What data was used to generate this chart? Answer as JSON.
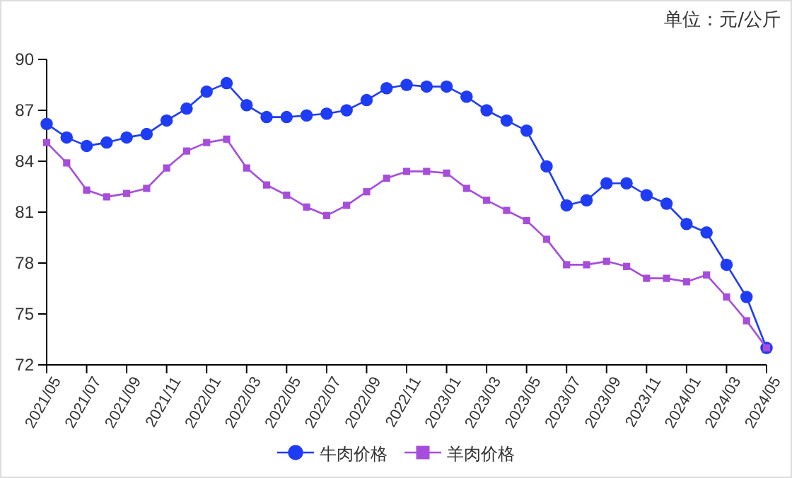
{
  "chart_data": {
    "type": "line",
    "annotations": [
      "单位：元/公斤"
    ],
    "categories": [
      "2021/05",
      null,
      "2021/07",
      null,
      "2021/09",
      null,
      "2021/11",
      null,
      "2022/01",
      null,
      "2022/03",
      null,
      "2022/05",
      null,
      "2022/07",
      null,
      "2022/09",
      null,
      "2022/11",
      null,
      "2023/01",
      null,
      "2023/03",
      null,
      "2023/05",
      null,
      "2023/07",
      null,
      "2023/09",
      null,
      "2023/11",
      null,
      "2024/01",
      null,
      "2024/03",
      null,
      "2024/05"
    ],
    "series": [
      {
        "name": "牛肉价格",
        "color": "#1f3cf5",
        "marker": "circle",
        "values": [
          86.2,
          85.4,
          84.9,
          85.1,
          85.4,
          85.6,
          86.4,
          87.1,
          88.1,
          88.6,
          87.3,
          86.6,
          86.6,
          86.7,
          86.8,
          87.0,
          87.6,
          88.3,
          88.5,
          88.4,
          88.4,
          87.8,
          87.0,
          86.4,
          85.8,
          83.7,
          81.4,
          81.7,
          82.7,
          82.7,
          82.0,
          81.5,
          80.3,
          79.8,
          77.9,
          76.0,
          73.0
        ]
      },
      {
        "name": "羊肉价格",
        "color": "#a64ddb",
        "marker": "square",
        "values": [
          85.1,
          83.9,
          82.3,
          81.9,
          82.1,
          82.4,
          83.6,
          84.6,
          85.1,
          85.3,
          83.6,
          82.6,
          82.0,
          81.3,
          80.8,
          81.4,
          82.2,
          83.0,
          83.4,
          83.4,
          83.3,
          82.4,
          81.7,
          81.1,
          80.5,
          79.4,
          77.9,
          77.9,
          78.1,
          77.8,
          77.1,
          77.1,
          76.9,
          77.3,
          76.0,
          74.6,
          73.0
        ]
      }
    ],
    "ylim": [
      72,
      90
    ],
    "yticks": [
      72,
      75,
      78,
      81,
      84,
      87,
      90
    ],
    "legend": "bottom",
    "line_style": "solid"
  }
}
